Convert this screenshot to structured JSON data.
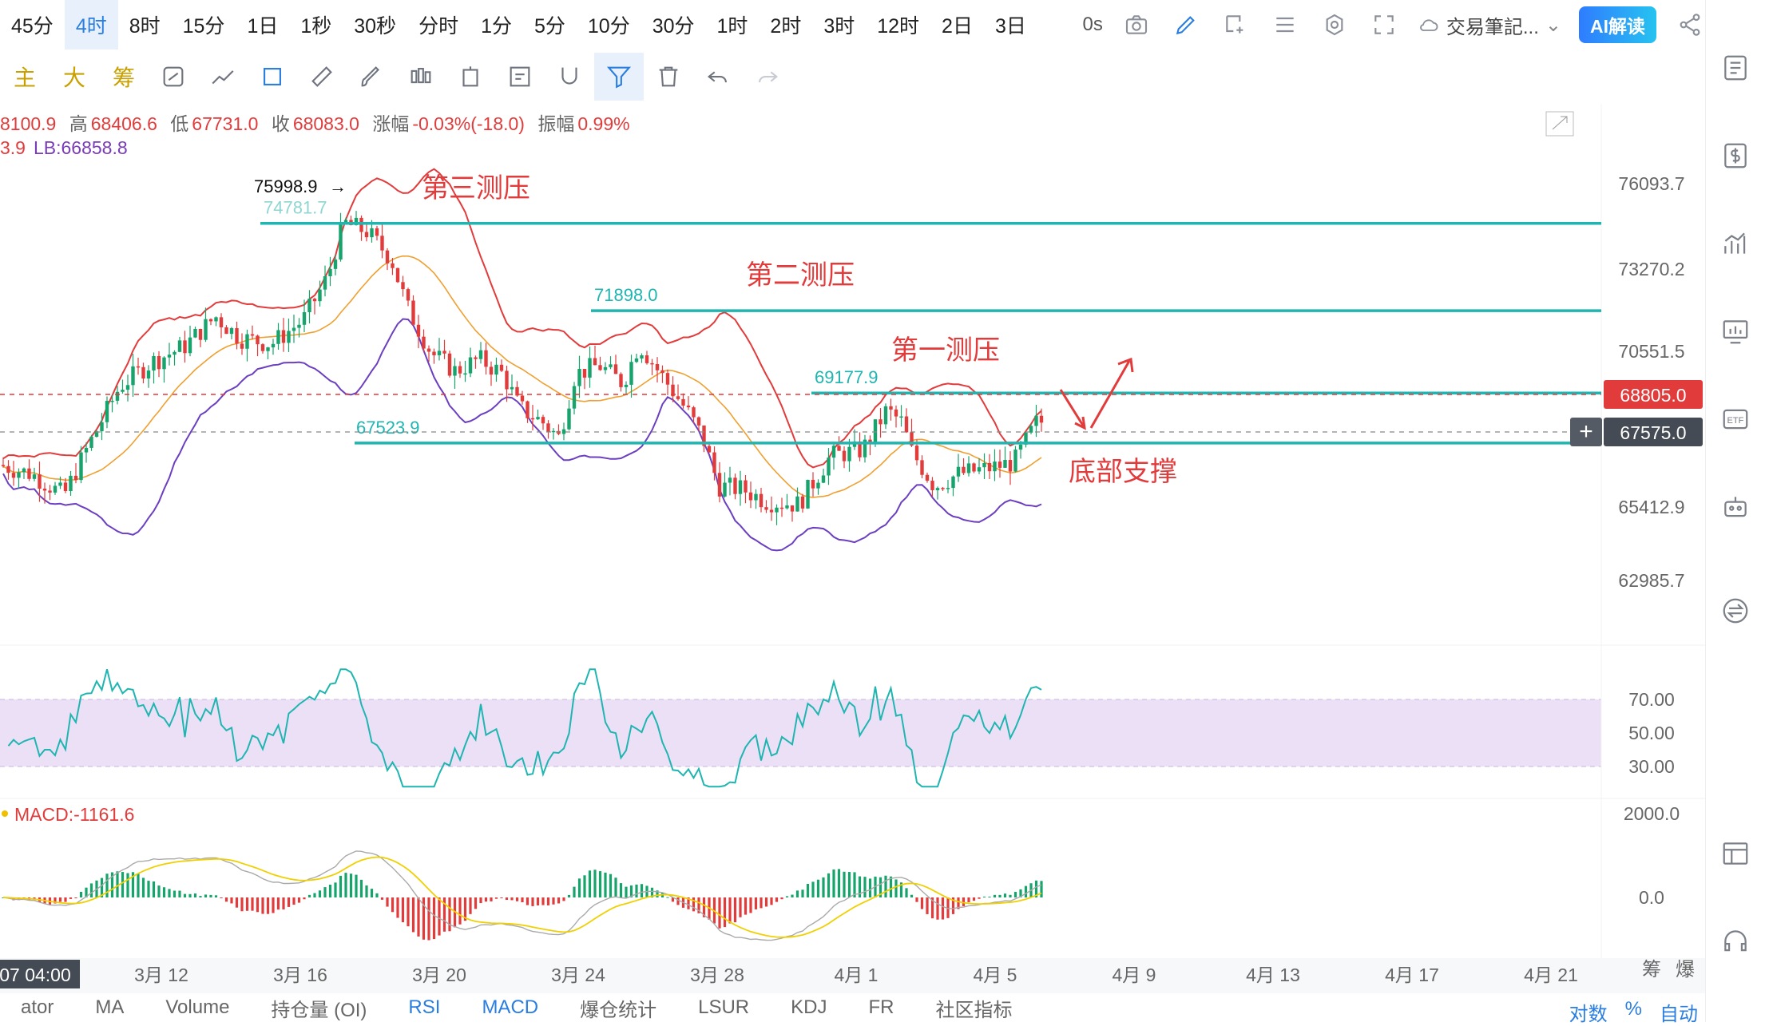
{
  "timeframes": [
    "45分",
    "4时",
    "8时",
    "15分",
    "1日",
    "1秒",
    "30秒",
    "分时",
    "1分",
    "5分",
    "10分",
    "30分",
    "1时",
    "2时",
    "3时",
    "12时",
    "2日",
    "3日"
  ],
  "active_timeframe": "4时",
  "top_right": {
    "countdown": "0s",
    "cloud_label": "交易筆記...",
    "ai_label": "AI解读"
  },
  "tool_chars": [
    "主",
    "大",
    "筹"
  ],
  "ohlc": {
    "open": "8100.9",
    "high_label": "高",
    "high": "68406.6",
    "low_label": "低",
    "low": "67731.0",
    "close_label": "收",
    "close": "68083.0",
    "change_label": "涨幅",
    "change": "-0.03%(-18.0)",
    "amp_label": "振幅",
    "amp": "0.99%"
  },
  "lb_line": {
    "prefix": "3.9",
    "lb": "LB:66858.8"
  },
  "price_axis": [
    "76093.7",
    "73270.2",
    "70551.5",
    "68805.0",
    "67575.0",
    "65412.9",
    "62985.7"
  ],
  "current_price_tag": "68805.0",
  "cross_price_tag": "67575.0",
  "levels": [
    {
      "label": "74781.7",
      "price": 74781.7
    },
    {
      "label": "71898.0",
      "price": 71898.0
    },
    {
      "label": "69177.9",
      "price": 69177.9
    },
    {
      "label": "67523.9",
      "price": 67523.9
    }
  ],
  "high_marker": "75998.9",
  "annotations": {
    "third": "第三测压",
    "second": "第二测压",
    "first": "第一测压",
    "support": "底部支撑"
  },
  "rsi_axis": [
    "70.00",
    "50.00",
    "30.00"
  ],
  "macd_label": "MACD:-1161.6",
  "macd_axis": [
    "2000.0",
    "0.0"
  ],
  "date_axis": [
    "3月 12",
    "3月 16",
    "3月 20",
    "3月 24",
    "3月 28",
    "4月 1",
    "4月 5",
    "4月 9",
    "4月 13",
    "4月 17",
    "4月 21"
  ],
  "cursor_date": "07 04:00",
  "axis_corner": [
    "筹",
    "爆"
  ],
  "bottom_tabs": [
    "ator",
    "MA",
    "Volume",
    "持仓量 (OI)",
    "RSI",
    "MACD",
    "爆仓统计",
    "LSUR",
    "KDJ",
    "FR",
    "社区指标"
  ],
  "active_tabs": [
    "RSI",
    "MACD"
  ],
  "bottom_right": [
    "对数",
    "%",
    "自动"
  ],
  "colors": {
    "accent": "#2a7ee0",
    "red": "#e23b3b",
    "green": "#16a36c",
    "teal": "#1fb5b0",
    "purple": "#6b3fc0",
    "orange": "#f0a030",
    "rsi_band": "#ece0f7"
  }
}
